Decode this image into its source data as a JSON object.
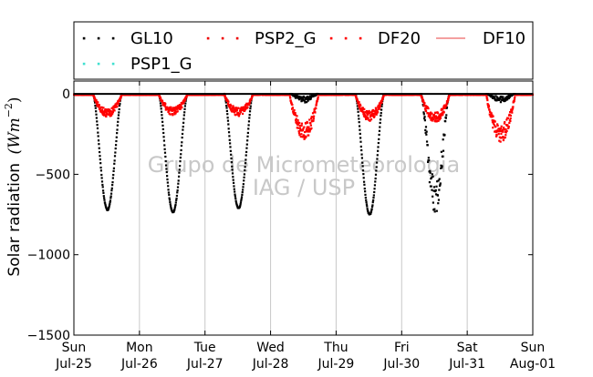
{
  "chart_data": {
    "type": "scatter",
    "ylabel": "Solar radiation",
    "ylabel_unit_base": "Wm",
    "ylabel_unit_exp": "−2",
    "ylim": [
      -1500,
      80
    ],
    "yticks": [
      0,
      -500,
      -1000,
      -1500
    ],
    "ytick_labels": [
      "0",
      "−500",
      "−1000",
      "−1500"
    ],
    "xlim": [
      "2015-07-25T00:00",
      "2015-08-01T00:00"
    ],
    "xtick_days": [
      "Sun",
      "Mon",
      "Tue",
      "Wed",
      "Thu",
      "Fri",
      "Sat",
      "Sun"
    ],
    "xtick_dates": [
      "Jul-25",
      "Jul-26",
      "Jul-27",
      "Jul-28",
      "Jul-29",
      "Jul-30",
      "Jul-31",
      "Aug-01"
    ],
    "grid": "vertical",
    "legend_position": "top",
    "watermark": [
      "Grupo de Micrometeorologia",
      "IAG / USP"
    ],
    "series": [
      {
        "name": "GL10",
        "style": "dotted",
        "color": "#000000",
        "daily_peak_minimum": [
          -720,
          -735,
          -710,
          -35,
          -750,
          -720,
          -35
        ],
        "daily_peak_hour": [
          12.5,
          12.5,
          12.5,
          12.5,
          12.5,
          12.5,
          12.5
        ]
      },
      {
        "name": "PSP2_G",
        "style": "dotted",
        "color": "#ee0000"
      },
      {
        "name": "DF20",
        "style": "dotted",
        "color": "#ff0000",
        "daily_peak_minimum": [
          -120,
          -110,
          -115,
          -240,
          -140,
          -150,
          -250
        ]
      },
      {
        "name": "DF10",
        "style": "line",
        "color": "#f08080"
      },
      {
        "name": "PSP1_G",
        "style": "dotted",
        "color": "#40e0d0"
      }
    ]
  }
}
